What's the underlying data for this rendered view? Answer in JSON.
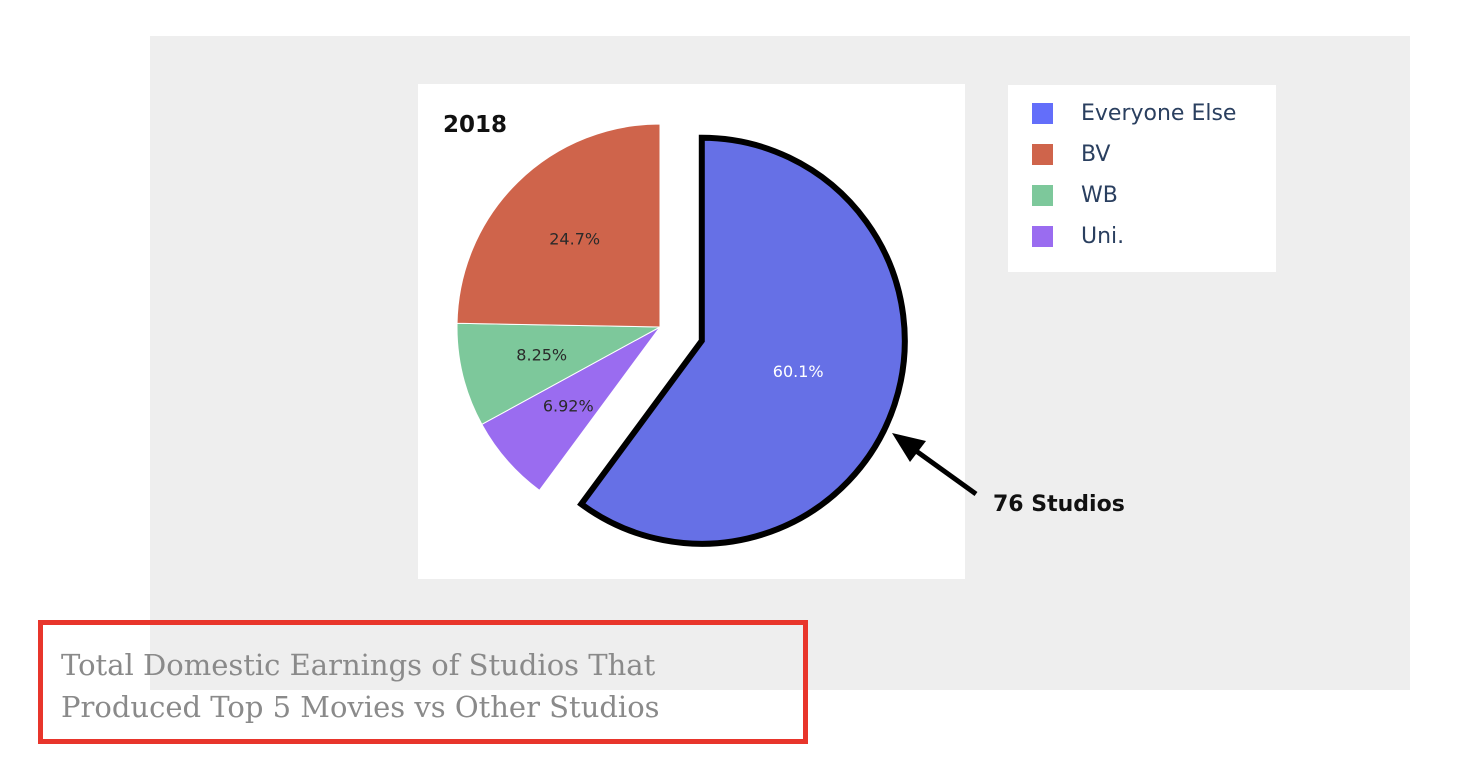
{
  "chart_data": {
    "type": "pie",
    "title": "2018",
    "slices": [
      {
        "label": "Everyone Else",
        "value": 60.1,
        "display": "60.1%",
        "color": "#636efa",
        "pulled": true,
        "outlined": true
      },
      {
        "label": "Uni.",
        "value": 6.92,
        "display": "6.92%",
        "color": "#ab63fa"
      },
      {
        "label": "WB",
        "value": 8.25,
        "display": "8.25%",
        "color": "#00cc96"
      },
      {
        "label": "BV",
        "value": 24.7,
        "display": "24.7%",
        "color": "#ef553b"
      }
    ],
    "legend": [
      "Everyone Else",
      "BV",
      "WB",
      "Uni."
    ],
    "legend_position": "top-right",
    "annotation": "76 Studios"
  },
  "caption": "Total Domestic Earnings of Studios That Produced Top 5 Movies vs Other Studios"
}
